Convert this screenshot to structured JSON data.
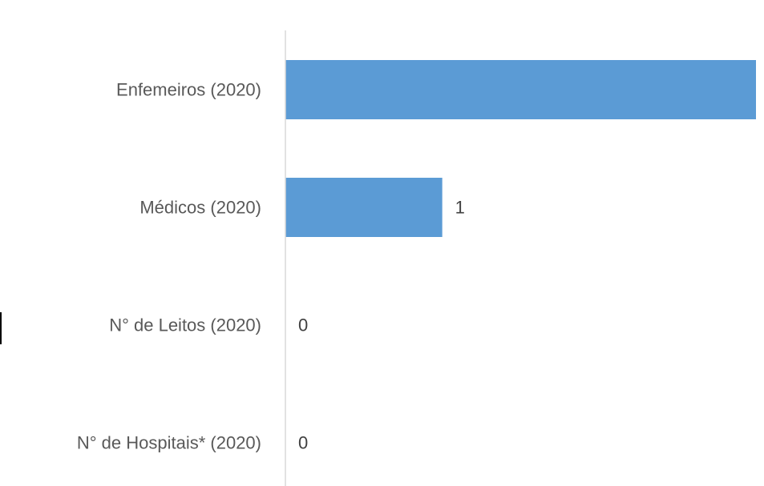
{
  "chart_data": {
    "type": "bar",
    "orientation": "horizontal",
    "categories": [
      "Enfemeiros (2020)",
      "Médicos (2020)",
      "N° de Leitos (2020)",
      "N° de Hospitais* (2020)"
    ],
    "values": [
      3,
      1,
      0,
      0
    ],
    "data_labels": [
      "",
      "1",
      "0",
      "0"
    ],
    "xlim": [
      0,
      3
    ],
    "bar_color": "#5b9bd5",
    "axis_color": "#d9d9d9",
    "grid": false,
    "legend": "none"
  }
}
